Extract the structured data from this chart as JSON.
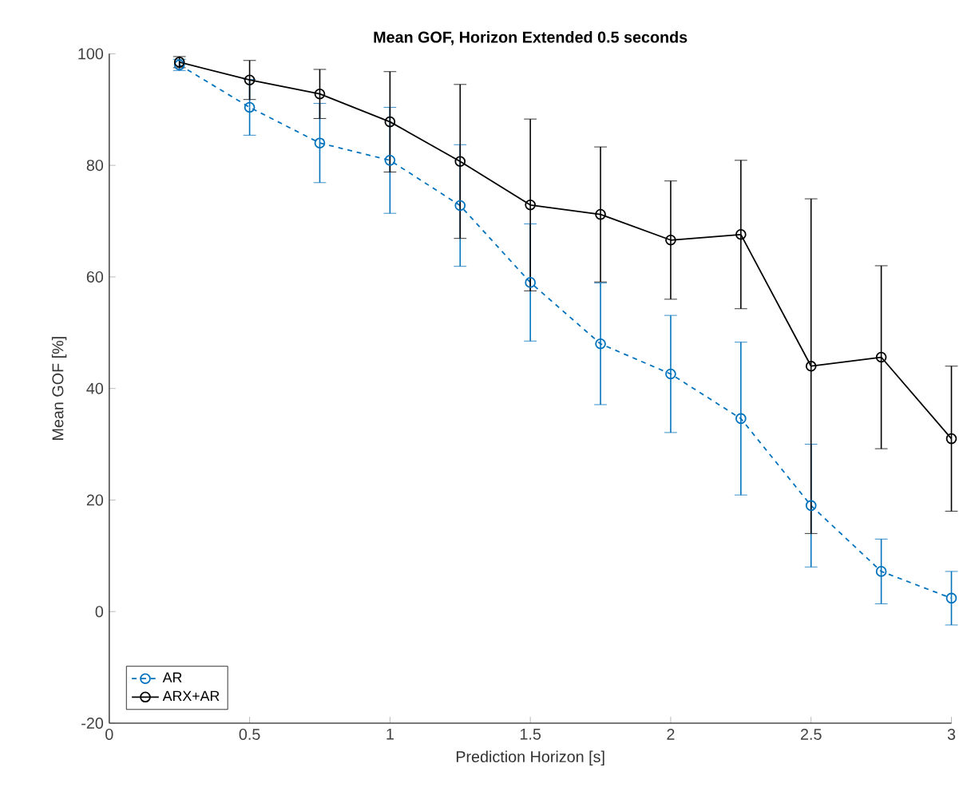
{
  "chart_data": {
    "type": "line",
    "title": "Mean GOF, Horizon Extended 0.5 seconds",
    "xlabel": "Prediction Horizon [s]",
    "ylabel": "Mean GOF [%]",
    "x": [
      0.25,
      0.5,
      0.75,
      1.0,
      1.25,
      1.5,
      1.75,
      2.0,
      2.25,
      2.5,
      2.75,
      3.0
    ],
    "series": [
      {
        "name": "AR",
        "color": "#0072bd",
        "line_style": "dashed",
        "values": [
          98.0,
          90.4,
          84.0,
          80.9,
          72.8,
          59.0,
          48.0,
          42.6,
          34.6,
          19.0,
          7.2,
          2.4
        ],
        "errors": [
          1,
          5,
          7.1,
          9.5,
          10.9,
          10.5,
          10.9,
          10.5,
          13.7,
          11,
          5.8,
          4.8
        ]
      },
      {
        "name": "ARX+AR",
        "color": "#000000",
        "line_style": "solid",
        "values": [
          98.5,
          95.3,
          92.8,
          87.8,
          80.7,
          72.9,
          71.2,
          66.6,
          67.6,
          44.0,
          45.6,
          31.0
        ],
        "errors": [
          1,
          3.5,
          4.4,
          9,
          13.8,
          15.4,
          12.1,
          10.6,
          13.3,
          30,
          16.4,
          13
        ]
      }
    ],
    "xlim": [
      0,
      3
    ],
    "ylim": [
      -20,
      100
    ],
    "xticks": [
      0,
      0.5,
      1,
      1.5,
      2,
      2.5,
      3
    ],
    "yticks": [
      -20,
      0,
      20,
      40,
      60,
      80,
      100
    ],
    "marker": "circle",
    "grid": false,
    "legend": "bottom left"
  }
}
